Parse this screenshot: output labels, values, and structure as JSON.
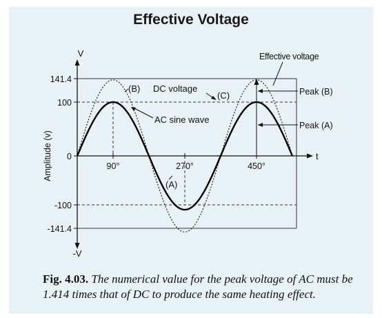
{
  "title": "Effective Voltage",
  "axes": {
    "y_axis_label": "Amplitude (v)",
    "y_top": "V",
    "y_bottom": "-V",
    "x_label": "t",
    "y_ticks": [
      "141.4",
      "100",
      "0",
      "-100",
      "-141.4"
    ],
    "x_ticks": [
      "90°",
      "270°",
      "450°"
    ]
  },
  "labels": {
    "effective_voltage": "Effective voltage",
    "peak_b": "Peak (B)",
    "peak_a": "Peak (A)",
    "b_marker": "(B)",
    "dc_voltage": "DC voltage",
    "c_marker": "(C)",
    "ac_sine_wave": "AC sine wave",
    "a_marker": "(A)"
  },
  "caption": {
    "lead": "Fig. 4.03.",
    "body": "The numerical value for the peak voltage of AC must be 1.414 times that of DC to produce the same heating effect."
  },
  "waves": {
    "solid_amplitude": 100,
    "dotted_amplitude": 141.4,
    "cycle_degrees": [
      0,
      540
    ]
  }
}
